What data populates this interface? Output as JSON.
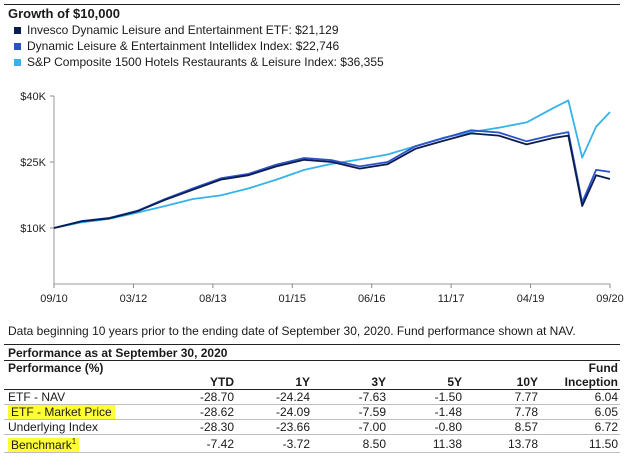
{
  "header": {
    "title": "Growth of $10,000"
  },
  "colors": {
    "etf": "#0b1d4f",
    "intellidex": "#2b52c7",
    "sp1500": "#36b3ea",
    "highlight": "#ffff33"
  },
  "chart_data": {
    "type": "line",
    "title": "Growth of $10,000",
    "xlabel": "",
    "ylabel": "",
    "x_tick_labels": [
      "09/10",
      "03/12",
      "08/13",
      "01/15",
      "06/16",
      "11/17",
      "04/19",
      "09/20"
    ],
    "y_tick_labels": [
      "$10K",
      "$25K",
      "$40K"
    ],
    "y_ticks": [
      10000,
      25000,
      40000
    ],
    "ylim": [
      10000,
      40000
    ],
    "x": [
      0,
      0.5,
      1,
      1.5,
      2,
      2.5,
      3,
      3.5,
      4,
      4.5,
      5,
      5.5,
      6,
      6.5,
      7,
      7.5,
      8,
      8.5,
      9,
      9.25,
      9.5,
      9.75,
      10
    ],
    "grid": false,
    "legend_position": "top-left",
    "series": [
      {
        "name": "Invesco Dynamic Leisure and Entertainment ETF: $21,129",
        "color_key": "etf",
        "values": [
          10000,
          11500,
          12200,
          13800,
          16400,
          18700,
          21000,
          22000,
          24000,
          25500,
          25000,
          23500,
          24500,
          28000,
          29800,
          31500,
          31000,
          29000,
          30500,
          31000,
          15000,
          22000,
          21129
        ]
      },
      {
        "name": "Dynamic Leisure & Entertainment Intellidex Index: $22,746",
        "color_key": "intellidex",
        "values": [
          10000,
          11600,
          12300,
          13900,
          16600,
          19000,
          21300,
          22300,
          24400,
          25900,
          25400,
          24000,
          25000,
          28600,
          30400,
          32200,
          31700,
          29700,
          31200,
          31800,
          15800,
          23200,
          22746
        ]
      },
      {
        "name": "S&P Composite 1500 Hotels Restaurants & Leisure Index: $36,355",
        "color_key": "sp1500",
        "values": [
          10000,
          11300,
          12100,
          13500,
          15000,
          16600,
          17400,
          19000,
          21000,
          23200,
          24600,
          25600,
          26700,
          28600,
          30500,
          31800,
          32800,
          34000,
          37400,
          39000,
          26000,
          33000,
          36355
        ]
      }
    ]
  },
  "footnote": "Data beginning 10 years prior to the ending date of September 30, 2020. Fund performance shown at NAV.",
  "performance": {
    "title": "Performance as at September 30, 2020",
    "header_label": "Performance (%)",
    "fund_label": "Fund",
    "columns": [
      "YTD",
      "1Y",
      "3Y",
      "5Y",
      "10Y",
      "Inception"
    ],
    "rows": [
      {
        "label": "ETF - NAV",
        "values": [
          "-28.70",
          "-24.24",
          "-7.63",
          "-1.50",
          "7.77",
          "6.04"
        ]
      },
      {
        "label": "ETF - Market Price",
        "values": [
          "-28.62",
          "-24.09",
          "-7.59",
          "-1.48",
          "7.78",
          "6.05"
        ]
      },
      {
        "label": "Underlying Index",
        "values": [
          "-28.30",
          "-23.66",
          "-7.00",
          "-0.80",
          "8.57",
          "6.72"
        ]
      },
      {
        "label": "Benchmark",
        "sup": "1",
        "values": [
          "-7.42",
          "-3.72",
          "8.50",
          "11.38",
          "13.78",
          "11.50"
        ]
      }
    ]
  }
}
